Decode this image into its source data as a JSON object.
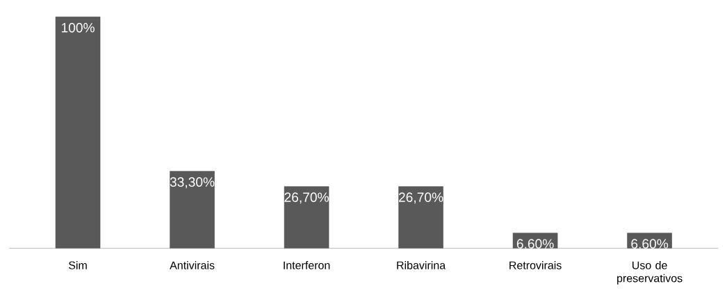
{
  "chart_data": {
    "type": "bar",
    "categories": [
      "Sim",
      "Antivirais",
      "Interferon",
      "Ribavirina",
      "Retrovirais",
      "Uso de preservativos"
    ],
    "values": [
      100,
      33.3,
      26.7,
      26.7,
      6.6,
      6.6
    ],
    "value_labels": [
      "100%",
      "33,30%",
      "26,70%",
      "26,70%",
      "6,60%",
      "6,60%"
    ],
    "color": "#595959"
  }
}
